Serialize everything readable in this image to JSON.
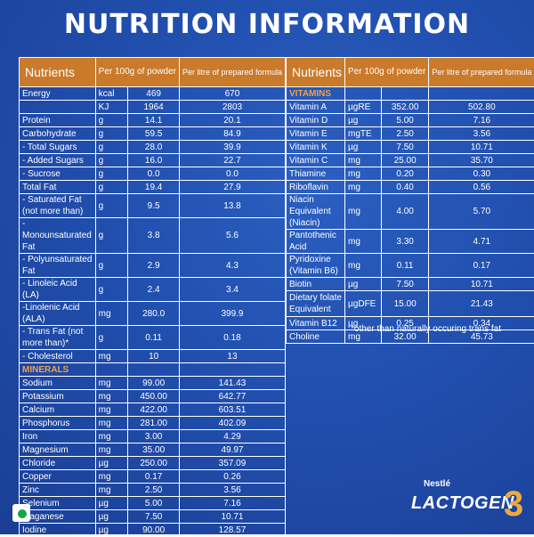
{
  "title": "NUTRITION INFORMATION",
  "headers": {
    "nutrients": "Nutrients",
    "per100": "Per 100g of powder",
    "perlitre": "Per litre of prepared formula"
  },
  "left_rows": [
    [
      "Energy",
      "kcal",
      "469",
      "670"
    ],
    [
      "",
      "KJ",
      "1964",
      "2803"
    ],
    [
      "Protein",
      "g",
      "14.1",
      "20.1"
    ],
    [
      "Carbohydrate",
      "g",
      "59.5",
      "84.9"
    ],
    [
      "- Total Sugars",
      "g",
      "28.0",
      "39.9"
    ],
    [
      "- Added Sugars",
      "g",
      "16.0",
      "22.7"
    ],
    [
      "- Sucrose",
      "g",
      "0.0",
      "0.0"
    ],
    [
      "Total Fat",
      "g",
      "19.4",
      "27.9"
    ],
    [
      "- Saturated Fat (not more than)",
      "g",
      "9.5",
      "13.8"
    ],
    [
      "- Monounsaturated Fat",
      "g",
      "3.8",
      "5.6"
    ],
    [
      "- Polyunsaturated Fat",
      "g",
      "2.9",
      "4.3"
    ],
    [
      "- Linoleic Acid (LA)",
      "g",
      "2.4",
      "3.4"
    ],
    [
      "-Linolenic Acid (ALA)",
      "mg",
      "280.0",
      "399.9"
    ],
    [
      "- Trans Fat (not more than)*",
      "g",
      "0.11",
      "0.18"
    ],
    [
      "- Cholesterol",
      "mg",
      "10",
      "13"
    ]
  ],
  "minerals_label": "MINERALS",
  "mineral_rows": [
    [
      "Sodium",
      "mg",
      "99.00",
      "141.43"
    ],
    [
      "Potassium",
      "mg",
      "450.00",
      "642.77"
    ],
    [
      "Calcium",
      "mg",
      "422.00",
      "603.51"
    ],
    [
      "Phosphorus",
      "mg",
      "281.00",
      "402.09"
    ],
    [
      "Iron",
      "mg",
      "3.00",
      "4.29"
    ],
    [
      "Magnesium",
      "mg",
      "35.00",
      "49.97"
    ],
    [
      "Chloride",
      "µg",
      "250.00",
      "357.09"
    ],
    [
      "Copper",
      "mg",
      "0.17",
      "0.26"
    ],
    [
      "Zinc",
      "mg",
      "2.50",
      "3.56"
    ],
    [
      "Selenium",
      "µg",
      "5.00",
      "7.16"
    ],
    [
      "Maganese",
      "µg",
      "7.50",
      "10.71"
    ],
    [
      "Iodine",
      "µg",
      "90.00",
      "128.57"
    ]
  ],
  "vitamins_label": "VITAMINS",
  "vitamin_rows": [
    [
      "Vitamin A",
      "µgRE",
      "352.00",
      "502.80"
    ],
    [
      "Vitamin D",
      "µg",
      "5.00",
      "7.16"
    ],
    [
      "Vitamin E",
      "mgTE",
      "2.50",
      "3.56"
    ],
    [
      "Vitamin K",
      "µg",
      "7.50",
      "10.71"
    ],
    [
      "Vitamin C",
      "mg",
      "25.00",
      "35.70"
    ],
    [
      "Thiamine",
      "mg",
      "0.20",
      "0.30"
    ],
    [
      "Riboflavin",
      "mg",
      "0.40",
      "0.56"
    ],
    [
      "Niacin Equivalent (Niacin)",
      "mg",
      "4.00",
      "5.70"
    ],
    [
      "Pantothenic Acid",
      "mg",
      "3.30",
      "4.71"
    ],
    [
      "Pyridoxine (Vitamin B6)",
      "mg",
      "0.11",
      "0.17"
    ],
    [
      "Biotin",
      "µg",
      "7.50",
      "10.71"
    ],
    [
      "Dietary folate Equivalent",
      "µgDFE",
      "15.00",
      "21.43"
    ],
    [
      "Vitamin B12",
      "µg",
      "0.25",
      "0.34"
    ],
    [
      "Choline",
      "mg",
      "32.00",
      "45.73"
    ]
  ],
  "footnote": "*other than naturally occuring trans fat",
  "brand": {
    "maker": "Nestlé",
    "product": "LACTOGEN",
    "stage": "3"
  },
  "colors": {
    "background": "#214fae",
    "header": "#c97a2b",
    "section": "#f0a04a",
    "veg_mark": "#1aa34a"
  }
}
